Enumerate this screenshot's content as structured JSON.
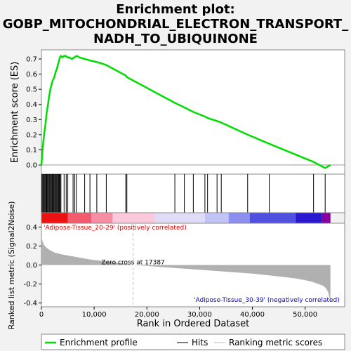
{
  "title_lines": [
    "Enrichment plot:",
    "GOBP_MITOCHONDRIAL_ELECTRON_TRANSPORT_",
    "NADH_TO_UBIQUINONE"
  ],
  "colors": {
    "es_line": "#00dd00",
    "hit_line": "#000000",
    "metric_fill": "#b0b0b0",
    "pos_label": "#dd0000",
    "neg_label": "#0000dd",
    "zero_dash": "#c0c0c0"
  },
  "chart_data": {
    "type": "line",
    "xlabel": "Rank in Ordered Dataset",
    "x_ticks": [
      0,
      10000,
      20000,
      30000,
      40000,
      50000
    ],
    "x_tick_labels": [
      "0",
      "10,000",
      "20,000",
      "30,000",
      "40,000",
      "50,000"
    ],
    "xlim": [
      0,
      57500
    ],
    "n_genes": 54800,
    "es_panel": {
      "ylabel": "Enrichment score (ES)",
      "ylim": [
        -0.06,
        0.76
      ],
      "y_ticks": [
        0.0,
        0.1,
        0.2,
        0.3,
        0.4,
        0.5,
        0.6,
        0.7
      ],
      "y_tick_labels": [
        "0.0",
        "0.1",
        "0.2",
        "0.3",
        "0.4",
        "0.5",
        "0.6",
        "0.7"
      ],
      "x": [
        0,
        200,
        350,
        500,
        650,
        800,
        950,
        1100,
        1250,
        1400,
        1550,
        1700,
        1850,
        2000,
        2150,
        2300,
        2450,
        2600,
        2750,
        2900,
        3050,
        3200,
        3350,
        3500,
        3700,
        4000,
        4300,
        4600,
        4900,
        5300,
        5800,
        6200,
        6700,
        7200,
        8200,
        9200,
        10500,
        12300,
        16000,
        16200,
        25300,
        27100,
        28800,
        31000,
        31500,
        33300,
        34100,
        39100,
        43200,
        51600,
        53800,
        54800
      ],
      "es": [
        0.0,
        0.09,
        0.15,
        0.2,
        0.24,
        0.28,
        0.33,
        0.37,
        0.4,
        0.44,
        0.47,
        0.5,
        0.52,
        0.54,
        0.56,
        0.57,
        0.58,
        0.6,
        0.62,
        0.63,
        0.65,
        0.67,
        0.69,
        0.71,
        0.72,
        0.71,
        0.72,
        0.72,
        0.71,
        0.71,
        0.7,
        0.71,
        0.72,
        0.71,
        0.7,
        0.69,
        0.68,
        0.66,
        0.59,
        0.58,
        0.41,
        0.38,
        0.35,
        0.32,
        0.31,
        0.29,
        0.28,
        0.2,
        0.14,
        0.02,
        -0.02,
        0.0
      ]
    },
    "hits": [
      100,
      250,
      400,
      550,
      700,
      850,
      1000,
      1150,
      1300,
      1450,
      1600,
      1750,
      1900,
      2050,
      2200,
      2350,
      2500,
      2650,
      2800,
      2950,
      3100,
      3250,
      3400,
      3550,
      3700,
      4300,
      4700,
      5000,
      6000,
      6300,
      6600,
      8200,
      9200,
      10500,
      12300,
      16000,
      16200,
      25300,
      27100,
      28800,
      31000,
      31500,
      33300,
      34100,
      39100,
      43200,
      51600,
      53800
    ],
    "metric_panel": {
      "ylabel": "Ranked list metric (Signal2Noise)",
      "ylim": [
        -0.44,
        0.44
      ],
      "y_ticks": [
        -0.4,
        -0.2,
        0.0,
        0.2,
        0.4
      ],
      "y_tick_labels": [
        "-0.4",
        "-0.2",
        "0.0",
        "0.2",
        "0.4"
      ],
      "x": [
        0,
        150,
        400,
        800,
        1500,
        2500,
        4000,
        6000,
        9000,
        12000,
        15000,
        17387,
        20000,
        25000,
        30000,
        35000,
        40000,
        45000,
        48000,
        50000,
        51500,
        52500,
        53500,
        54000,
        54400,
        54600,
        54800
      ],
      "values": [
        0.3,
        0.26,
        0.22,
        0.19,
        0.16,
        0.13,
        0.11,
        0.09,
        0.06,
        0.04,
        0.02,
        0.0,
        -0.01,
        -0.03,
        -0.05,
        -0.07,
        -0.09,
        -0.12,
        -0.14,
        -0.16,
        -0.18,
        -0.2,
        -0.22,
        -0.25,
        -0.29,
        -0.34,
        -0.38
      ],
      "zero_cross": 17387,
      "zero_cross_label": "Zero cross at 17387",
      "pos_phenotype": "'Adipose-Tissue_20-29' (positively correlated)",
      "neg_phenotype": "'Adipose-Tissue_30-39' (negatively correlated)"
    },
    "heat_bar_segments": [
      {
        "from": 0,
        "to": 5000,
        "color": "#ee1111"
      },
      {
        "from": 5000,
        "to": 9500,
        "color": "#f25c6c"
      },
      {
        "from": 9500,
        "to": 13500,
        "color": "#f78ea4"
      },
      {
        "from": 13500,
        "to": 21500,
        "color": "#fcc8dc"
      },
      {
        "from": 21500,
        "to": 31000,
        "color": "#e0dcf8"
      },
      {
        "from": 31000,
        "to": 35500,
        "color": "#c2c4f6"
      },
      {
        "from": 35500,
        "to": 39500,
        "color": "#8c8ef0"
      },
      {
        "from": 39500,
        "to": 48200,
        "color": "#5050e0"
      },
      {
        "from": 48200,
        "to": 53200,
        "color": "#2a18d0"
      },
      {
        "from": 53200,
        "to": 54800,
        "color": "#880099"
      }
    ],
    "legend": [
      "Enrichment profile",
      "Hits",
      "Ranking metric scores"
    ]
  }
}
